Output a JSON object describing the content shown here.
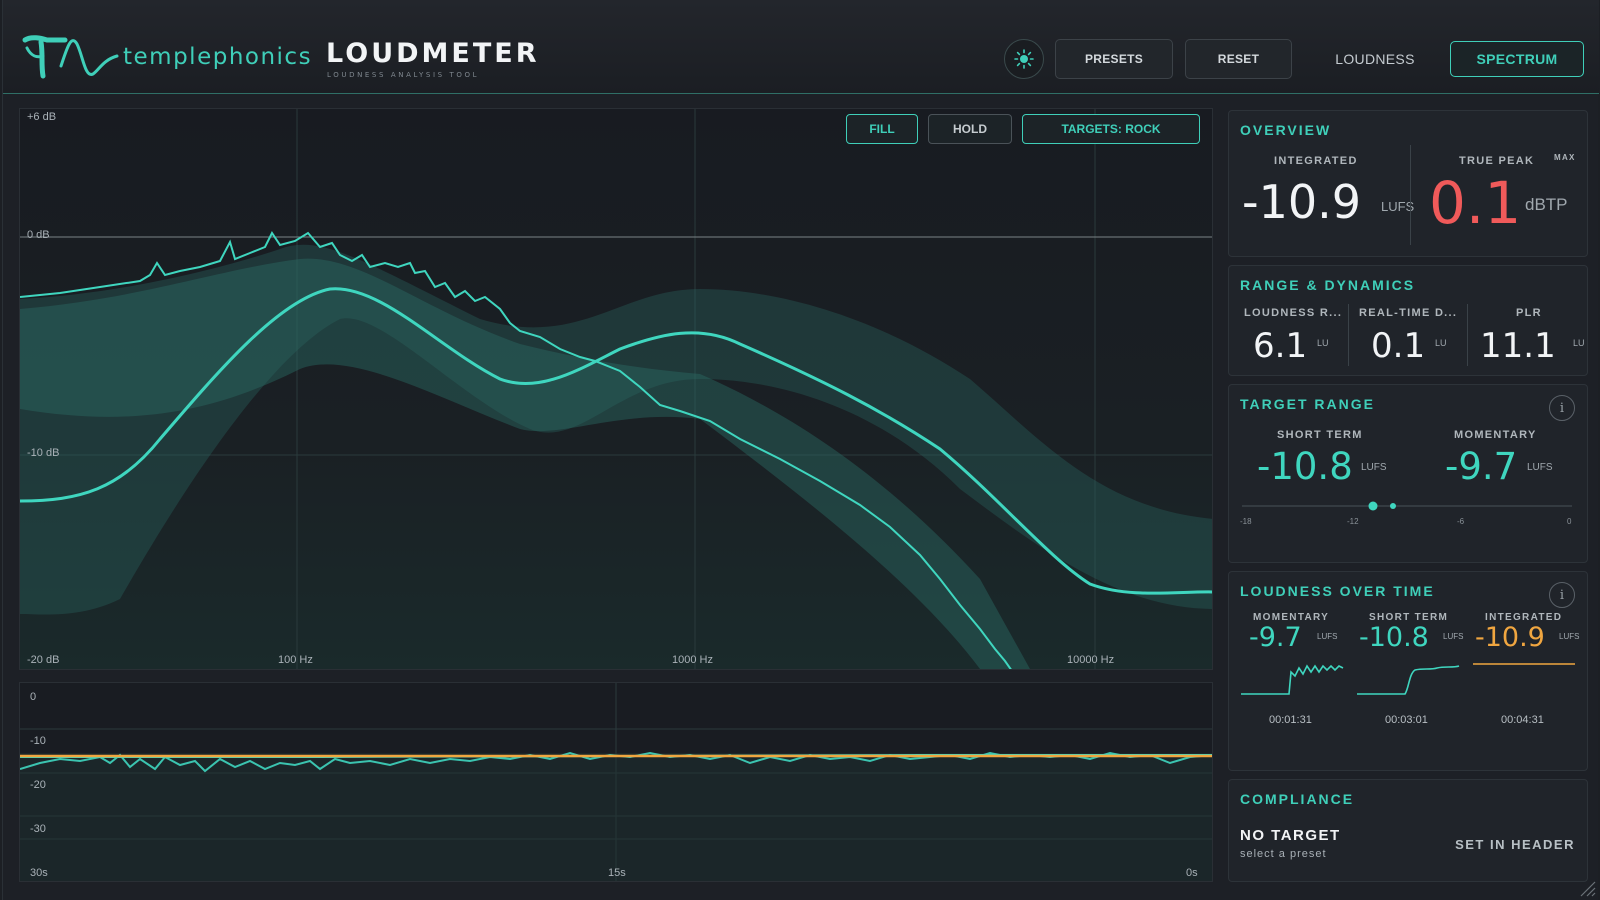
{
  "header": {
    "brand": "templephonics",
    "product": "LOUDMETER",
    "subtitle": "LOUDNESS ANALYSIS TOOL",
    "theme_icon": "sun-icon",
    "presets_label": "PRESETS",
    "reset_label": "RESET",
    "tabs": [
      {
        "label": "LOUDNESS",
        "active": false
      },
      {
        "label": "SPECTRUM",
        "active": true
      }
    ]
  },
  "spectrum": {
    "buttons": {
      "fill": "FILL",
      "hold": "HOLD",
      "targets": "TARGETS: ROCK"
    },
    "y_labels": [
      "+6 dB",
      "0 dB",
      "-10 dB",
      "-20 dB"
    ],
    "x_labels": [
      "100 Hz",
      "1000 Hz",
      "10000 Hz"
    ]
  },
  "history": {
    "y_labels": [
      "0",
      "-10",
      "-20",
      "-30"
    ],
    "x_labels": [
      "30s",
      "15s",
      "0s"
    ]
  },
  "overview": {
    "title": "OVERVIEW",
    "integrated": {
      "label": "INTEGRATED",
      "value": "-10.9",
      "unit": "LUFS"
    },
    "true_peak": {
      "label": "TRUE PEAK",
      "badge": "MAX",
      "value": "0.1",
      "unit": "dBTP"
    }
  },
  "range_dynamics": {
    "title": "RANGE & DYNAMICS",
    "items": [
      {
        "label": "LOUDNESS R...",
        "value": "6.1",
        "unit": "LU"
      },
      {
        "label": "REAL-TIME D...",
        "value": "0.1",
        "unit": "LU"
      },
      {
        "label": "PLR",
        "value": "11.1",
        "unit": "LU"
      }
    ]
  },
  "target_range": {
    "title": "TARGET RANGE",
    "short_term": {
      "label": "SHORT TERM",
      "value": "-10.8",
      "unit": "LUFS"
    },
    "momentary": {
      "label": "MOMENTARY",
      "value": "-9.7",
      "unit": "LUFS"
    },
    "scale": [
      "-18",
      "-12",
      "-6",
      "0"
    ]
  },
  "loudness_over_time": {
    "title": "LOUDNESS OVER TIME",
    "items": [
      {
        "label": "MOMENTARY",
        "value": "-9.7",
        "unit": "LUFS",
        "time": "00:01:31"
      },
      {
        "label": "SHORT TERM",
        "value": "-10.8",
        "unit": "LUFS",
        "time": "00:03:01"
      },
      {
        "label": "INTEGRATED",
        "value": "-10.9",
        "unit": "LUFS",
        "time": "00:04:31"
      }
    ]
  },
  "compliance": {
    "title": "COMPLIANCE",
    "status": "NO TARGET",
    "hint": "select a preset",
    "action": "SET IN HEADER"
  },
  "colors": {
    "accent": "#3fcfb9",
    "peak_red": "#f05a5a",
    "integrated_orange": "#f0a640",
    "background": "#1d2026"
  }
}
